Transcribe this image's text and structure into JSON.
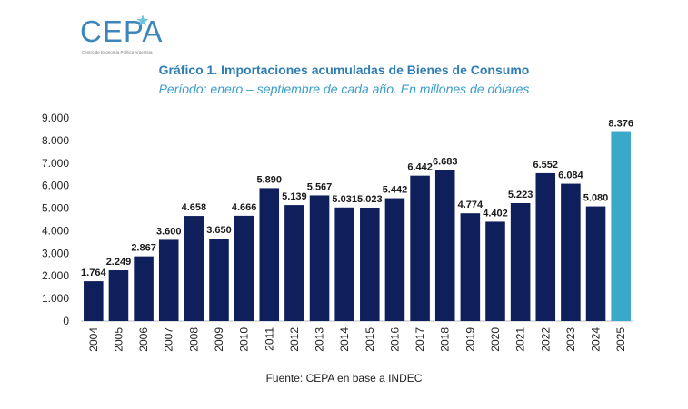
{
  "logo": {
    "text": "CEPA",
    "subtitle": "Centro de Economía Política Argentina"
  },
  "chart_data": {
    "type": "bar",
    "title": "Gráfico 1. Importaciones acumuladas de Bienes de Consumo",
    "subtitle": "Período: enero – septiembre de cada año. En millones de dólares",
    "categories": [
      "2004",
      "2005",
      "2006",
      "2007",
      "2008",
      "2009",
      "2010",
      "2011",
      "2012",
      "2013",
      "2014",
      "2015",
      "2016",
      "2017",
      "2018",
      "2019",
      "2020",
      "2021",
      "2022",
      "2023",
      "2024",
      "2025"
    ],
    "values": [
      1764,
      2249,
      2867,
      3600,
      4658,
      3650,
      4666,
      5890,
      5139,
      5567,
      5031,
      5023,
      5442,
      6442,
      6683,
      4774,
      4402,
      5223,
      6552,
      6084,
      5080,
      8376
    ],
    "value_labels": [
      "1.764",
      "2.249",
      "2.867",
      "3.600",
      "4.658",
      "3.650",
      "4.666",
      "5.890",
      "5.139",
      "5.567",
      "5.031",
      "5.023",
      "5.442",
      "6.442",
      "6.683",
      "4.774",
      "4.402",
      "5.223",
      "6.552",
      "6.084",
      "5.080",
      "8.376"
    ],
    "ylim": [
      0,
      9000
    ],
    "yticks": [
      0,
      1000,
      2000,
      3000,
      4000,
      5000,
      6000,
      7000,
      8000,
      9000
    ],
    "ytick_labels": [
      "0",
      "1.000",
      "2.000",
      "3.000",
      "4.000",
      "5.000",
      "6.000",
      "7.000",
      "8.000",
      "9.000"
    ],
    "grid": false,
    "legend": "none",
    "colors": {
      "default": "#0f1f5c",
      "highlight": "#3aa8c9",
      "highlight_index": 21
    }
  },
  "source": "Fuente: CEPA en base a INDEC"
}
